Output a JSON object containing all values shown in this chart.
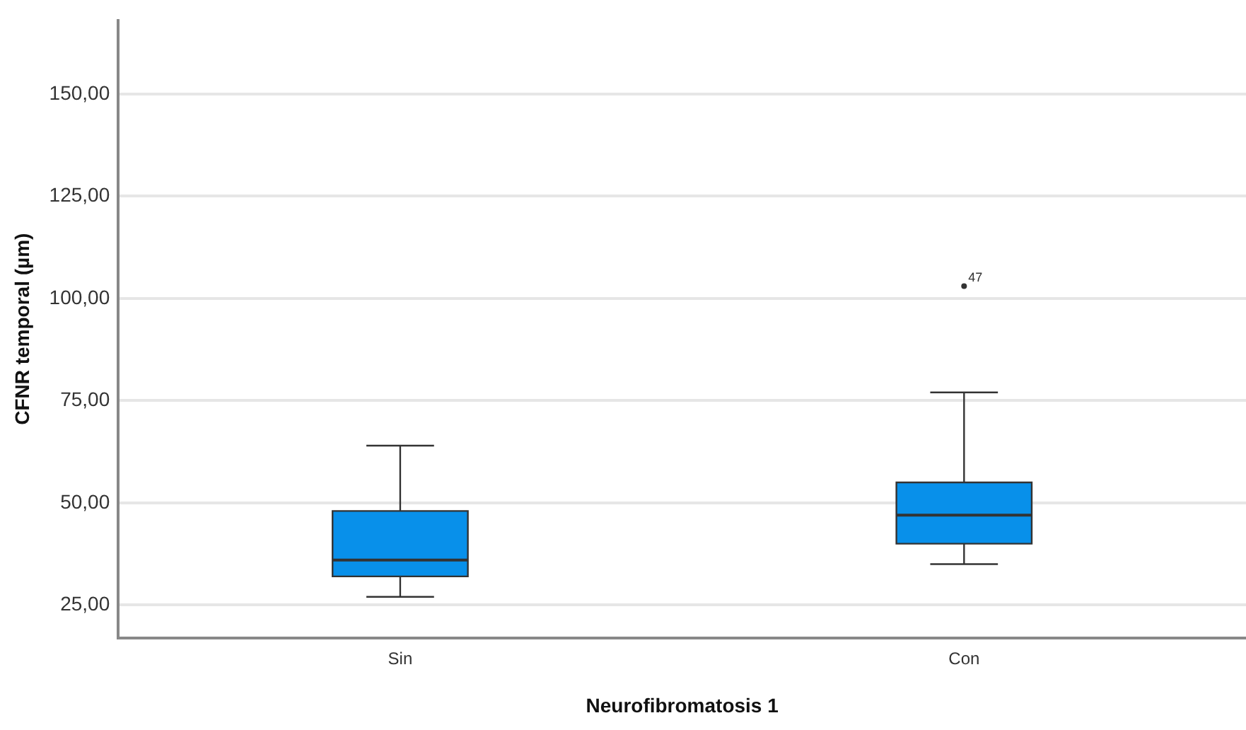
{
  "chart_data": {
    "type": "box",
    "xlabel": "Neurofibromatosis 1",
    "ylabel": "CFNR temporal (µm)",
    "categories": [
      "Sin",
      "Con"
    ],
    "color": "#0890ea",
    "boxes": [
      {
        "low": 27,
        "q1": 32,
        "median": 36,
        "q3": 48,
        "high": 64
      },
      {
        "low": 35,
        "q1": 40,
        "median": 47,
        "q3": 55,
        "high": 77,
        "outliers": [
          103
        ]
      }
    ],
    "annotations": [
      "47"
    ],
    "ylim": [
      17,
      168
    ],
    "yticks": [
      {
        "value": 25,
        "label": "25,00"
      },
      {
        "value": 50,
        "label": "50,00"
      },
      {
        "value": 75,
        "label": "75,00"
      },
      {
        "value": 100,
        "label": "100,00"
      },
      {
        "value": 125,
        "label": "125,00"
      },
      {
        "value": 150,
        "label": "150,00"
      }
    ],
    "grid": "y"
  }
}
